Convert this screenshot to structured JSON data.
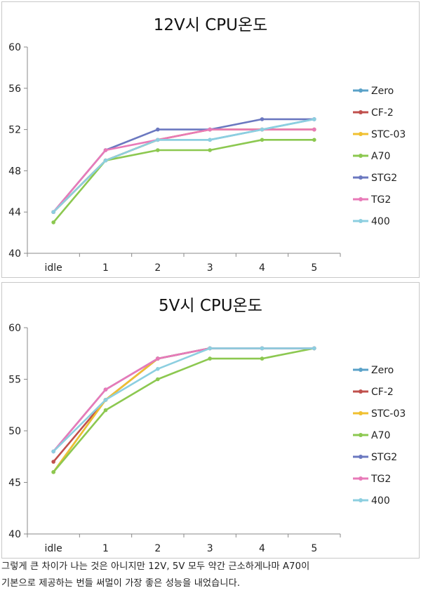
{
  "chart_data": [
    {
      "type": "line",
      "title": "12V시 CPU온도",
      "categories": [
        "idle",
        "1",
        "2",
        "3",
        "4",
        "5"
      ],
      "ylim": [
        40,
        60
      ],
      "yticks": [
        40,
        44,
        48,
        52,
        56,
        60
      ],
      "legend_position": "right",
      "series": [
        {
          "name": "Zero",
          "color": "#5aa2c8",
          "values": [
            44,
            49,
            51,
            51,
            52,
            53
          ]
        },
        {
          "name": "CF-2",
          "color": "#c0504d",
          "values": [
            44,
            49,
            51,
            52,
            52,
            52
          ]
        },
        {
          "name": "STC-03",
          "color": "#f0c030",
          "values": [
            44,
            49,
            51,
            52,
            52,
            52
          ]
        },
        {
          "name": "A70",
          "color": "#8cc850",
          "values": [
            43,
            49,
            50,
            50,
            51,
            51
          ]
        },
        {
          "name": "STG2",
          "color": "#6b78c0",
          "values": [
            44,
            50,
            52,
            52,
            53,
            53
          ]
        },
        {
          "name": "TG2",
          "color": "#e87ab8",
          "values": [
            44,
            50,
            51,
            52,
            52,
            52
          ]
        },
        {
          "name": "400",
          "color": "#8ccfe0",
          "values": [
            44,
            49,
            51,
            51,
            52,
            53
          ]
        }
      ]
    },
    {
      "type": "line",
      "title": "5V시 CPU온도",
      "categories": [
        "idle",
        "1",
        "2",
        "3",
        "4",
        "5"
      ],
      "ylim": [
        40,
        60
      ],
      "yticks": [
        40,
        45,
        50,
        55,
        60
      ],
      "legend_position": "right",
      "series": [
        {
          "name": "Zero",
          "color": "#5aa2c8",
          "values": [
            46,
            53,
            57,
            58,
            58,
            58
          ]
        },
        {
          "name": "CF-2",
          "color": "#c0504d",
          "values": [
            47,
            53,
            57,
            58,
            58,
            58
          ]
        },
        {
          "name": "STC-03",
          "color": "#f0c030",
          "values": [
            46,
            53,
            57,
            58,
            58,
            58
          ]
        },
        {
          "name": "A70",
          "color": "#8cc850",
          "values": [
            46,
            52,
            55,
            57,
            57,
            58
          ]
        },
        {
          "name": "STG2",
          "color": "#6b78c0",
          "values": [
            48,
            54,
            57,
            58,
            58,
            58
          ]
        },
        {
          "name": "TG2",
          "color": "#e87ab8",
          "values": [
            48,
            54,
            57,
            58,
            58,
            58
          ]
        },
        {
          "name": "400",
          "color": "#8ccfe0",
          "values": [
            48,
            53,
            56,
            58,
            58,
            58
          ]
        }
      ]
    }
  ],
  "caption": {
    "line1": "그렇게 큰 차이가 나는 것은 아니지만 12V, 5V 모두 약간 근소하게나마 A70이",
    "line2": "기본으로 제공하는 번들 써멀이 가장 좋은 성능을 내었습니다."
  }
}
